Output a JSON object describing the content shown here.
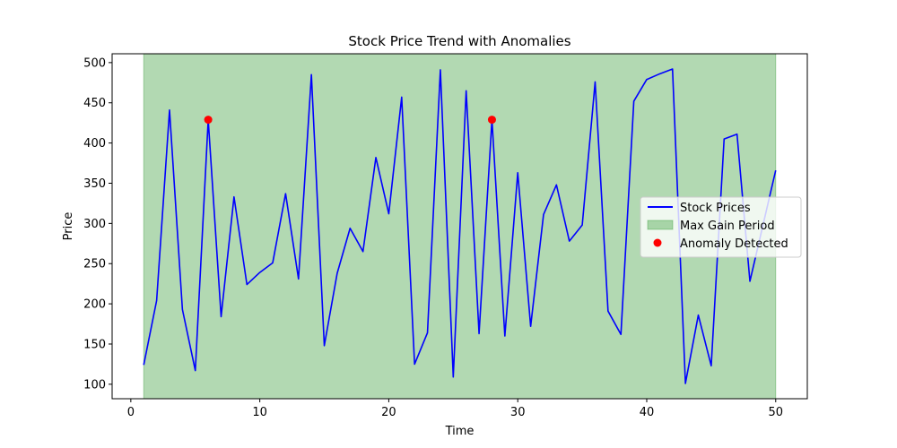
{
  "chart_data": {
    "type": "line",
    "title": "Stock Price Trend with Anomalies",
    "xlabel": "Time",
    "ylabel": "Price",
    "xlim": [
      -1.45,
      52.45
    ],
    "ylim": [
      82,
      511
    ],
    "xticks": [
      0,
      10,
      20,
      30,
      40,
      50
    ],
    "yticks": [
      100,
      150,
      200,
      250,
      300,
      350,
      400,
      450,
      500
    ],
    "series": [
      {
        "name": "Stock Prices",
        "color": "#0000ff",
        "x": [
          1,
          2,
          3,
          4,
          5,
          6,
          7,
          8,
          9,
          10,
          11,
          12,
          13,
          14,
          15,
          16,
          17,
          18,
          19,
          20,
          21,
          22,
          23,
          24,
          25,
          26,
          27,
          28,
          29,
          30,
          31,
          32,
          33,
          34,
          35,
          36,
          37,
          38,
          39,
          40,
          41,
          42,
          43,
          44,
          45,
          46,
          47,
          48,
          49,
          50
        ],
        "values": [
          124,
          204,
          441,
          193,
          117,
          429,
          184,
          333,
          224,
          239,
          251,
          337,
          231,
          485,
          148,
          238,
          294,
          265,
          382,
          312,
          457,
          125,
          164,
          491,
          109,
          465,
          163,
          429,
          160,
          363,
          172,
          311,
          348,
          278,
          298,
          476,
          191,
          162,
          452,
          479,
          486,
          492,
          101,
          186,
          123,
          405,
          411,
          228,
          297,
          366
        ]
      }
    ],
    "max_gain_period": {
      "label": "Max Gain Period",
      "start": 1,
      "end": 50,
      "color": "#008000",
      "alpha": 0.3
    },
    "anomalies": {
      "label": "Anomaly Detected",
      "color": "#ff0000",
      "x": [
        6,
        28
      ],
      "values": [
        429,
        429
      ]
    },
    "legend_location": "center-right"
  }
}
